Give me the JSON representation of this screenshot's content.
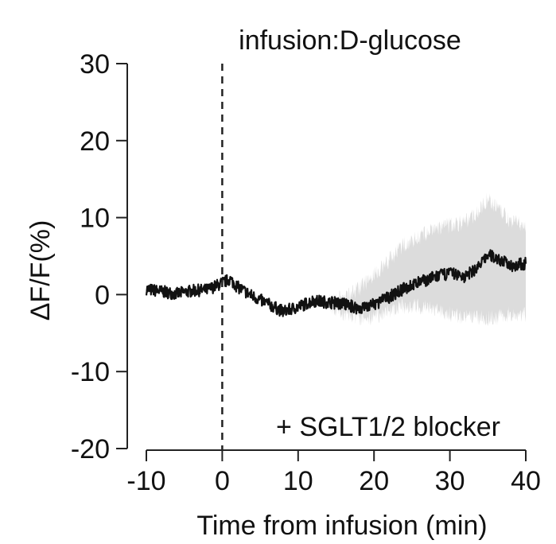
{
  "chart_data": {
    "type": "line",
    "title": "",
    "xlabel": "Time from infusion (min)",
    "ylabel": "ΔF/F(%)",
    "xlim": [
      -10,
      40
    ],
    "ylim": [
      -20,
      30
    ],
    "xticks": [
      -10,
      0,
      10,
      20,
      30,
      40
    ],
    "yticks": [
      -20,
      -10,
      0,
      10,
      20,
      30
    ],
    "x_tick_labels": [
      "-10",
      "0",
      "10",
      "20",
      "30",
      "40"
    ],
    "y_tick_labels": [
      "-20",
      "-10",
      "0",
      "10",
      "20",
      "30"
    ],
    "annotations": {
      "event_label": "infusion:D-glucose",
      "condition_label": "+ SGLT1/2 blocker"
    },
    "event_marker": {
      "x": 0,
      "style": "dashed"
    },
    "grid": false,
    "series": [
      {
        "color": "#111111",
        "band_color": "#dcdcdc",
        "x": [
          -10,
          -8,
          -6,
          -4,
          -2,
          0,
          1,
          2,
          4,
          6,
          8,
          10,
          12,
          14,
          16,
          18,
          20,
          22,
          24,
          26,
          28,
          30,
          32,
          34,
          35,
          36,
          38,
          40
        ],
        "values": [
          0.7,
          0.4,
          0.1,
          0.5,
          0.6,
          1.5,
          2.0,
          1.0,
          -0.2,
          -1.2,
          -2.2,
          -1.6,
          -0.8,
          -1.0,
          -1.2,
          -1.8,
          -1.3,
          -0.3,
          0.8,
          1.6,
          2.3,
          2.8,
          2.3,
          3.8,
          5.2,
          4.8,
          3.8,
          4.0
        ],
        "lower": [
          0.7,
          0.4,
          0.1,
          0.5,
          0.6,
          1.5,
          2.0,
          1.0,
          -0.2,
          -1.2,
          -2.2,
          -1.6,
          -0.8,
          -1.2,
          -2.5,
          -3.0,
          -3.0,
          -2.0,
          -1.5,
          -1.5,
          -2.0,
          -2.5,
          -3.0,
          -3.0,
          -3.0,
          -3.0,
          -2.5,
          -2.5
        ],
        "upper": [
          0.7,
          0.4,
          0.1,
          0.5,
          0.6,
          1.5,
          2.0,
          1.0,
          -0.2,
          -1.2,
          -2.2,
          -1.6,
          -0.8,
          -0.8,
          -0.3,
          0.8,
          2.5,
          4.5,
          6.5,
          7.5,
          8.5,
          9.0,
          9.5,
          11.0,
          12.5,
          11.5,
          9.5,
          9.0
        ]
      }
    ]
  }
}
